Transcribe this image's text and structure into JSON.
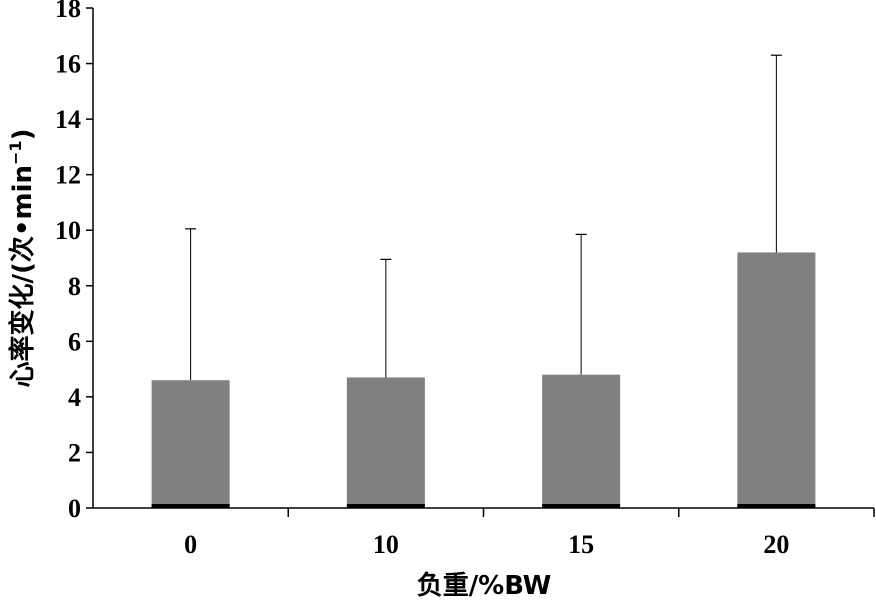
{
  "chart_data": {
    "type": "bar",
    "title": "",
    "xlabel": "负重/%BW",
    "ylabel": "心率变化/(次•min",
    "ylabel_sup": "−1",
    "ylabel_close": ")",
    "categories": [
      "0",
      "10",
      "15",
      "20"
    ],
    "series": [
      {
        "values": [
          4.6,
          4.7,
          4.8,
          9.2
        ],
        "error_upper": [
          10.05,
          8.95,
          9.85,
          16.3
        ]
      }
    ],
    "ylim": [
      0,
      18
    ],
    "yticks": [
      "0",
      "2",
      "4",
      "6",
      "8",
      "10",
      "12",
      "14",
      "16",
      "18"
    ],
    "bar_color": "#808080",
    "grid": false,
    "legend": "none"
  }
}
